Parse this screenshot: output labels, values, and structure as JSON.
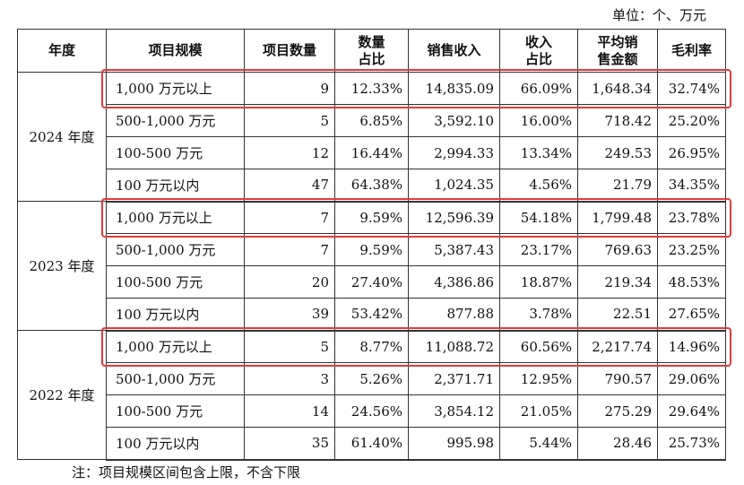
{
  "unit_label": "单位：个、万元",
  "headers": {
    "year": "年度",
    "scale": "项目规模",
    "count": "项目数量",
    "count_share": "数量\n占比",
    "revenue": "销售收入",
    "revenue_share": "收入\n占比",
    "avg": "平均销\n售金额",
    "margin": "毛利率"
  },
  "groups": [
    {
      "year": "2024 年度",
      "rows": [
        {
          "scale": "1,000 万元以上",
          "count": "9",
          "count_share": "12.33%",
          "revenue": "14,835.09",
          "revenue_share": "66.09%",
          "avg": "1,648.34",
          "margin": "32.74%",
          "highlight": true
        },
        {
          "scale": "500-1,000 万元",
          "count": "5",
          "count_share": "6.85%",
          "revenue": "3,592.10",
          "revenue_share": "16.00%",
          "avg": "718.42",
          "margin": "25.20%"
        },
        {
          "scale": "100-500 万元",
          "count": "12",
          "count_share": "16.44%",
          "revenue": "2,994.33",
          "revenue_share": "13.34%",
          "avg": "249.53",
          "margin": "26.95%"
        },
        {
          "scale": "100 万元以内",
          "count": "47",
          "count_share": "64.38%",
          "revenue": "1,024.35",
          "revenue_share": "4.56%",
          "avg": "21.79",
          "margin": "34.35%"
        }
      ]
    },
    {
      "year": "2023 年度",
      "rows": [
        {
          "scale": "1,000 万元以上",
          "count": "7",
          "count_share": "9.59%",
          "revenue": "12,596.39",
          "revenue_share": "54.18%",
          "avg": "1,799.48",
          "margin": "23.78%",
          "highlight": true
        },
        {
          "scale": "500-1,000 万元",
          "count": "7",
          "count_share": "9.59%",
          "revenue": "5,387.43",
          "revenue_share": "23.17%",
          "avg": "769.63",
          "margin": "23.25%"
        },
        {
          "scale": "100-500 万元",
          "count": "20",
          "count_share": "27.40%",
          "revenue": "4,386.86",
          "revenue_share": "18.87%",
          "avg": "219.34",
          "margin": "48.53%"
        },
        {
          "scale": "100 万元以内",
          "count": "39",
          "count_share": "53.42%",
          "revenue": "877.88",
          "revenue_share": "3.78%",
          "avg": "22.51",
          "margin": "27.65%"
        }
      ]
    },
    {
      "year": "2022 年度",
      "rows": [
        {
          "scale": "1,000 万元以上",
          "count": "5",
          "count_share": "8.77%",
          "revenue": "11,088.72",
          "revenue_share": "60.56%",
          "avg": "2,217.74",
          "margin": "14.96%",
          "highlight": true
        },
        {
          "scale": "500-1,000 万元",
          "count": "3",
          "count_share": "5.26%",
          "revenue": "2,371.71",
          "revenue_share": "12.95%",
          "avg": "790.57",
          "margin": "29.06%"
        },
        {
          "scale": "100-500 万元",
          "count": "14",
          "count_share": "24.56%",
          "revenue": "3,854.12",
          "revenue_share": "21.05%",
          "avg": "275.29",
          "margin": "29.64%"
        },
        {
          "scale": "100 万元以内",
          "count": "35",
          "count_share": "61.40%",
          "revenue": "995.98",
          "revenue_share": "5.44%",
          "avg": "28.46",
          "margin": "25.73%"
        }
      ]
    }
  ],
  "highlight_color": "#e23b3b",
  "note": "注：项目规模区间包含上限，不含下限"
}
